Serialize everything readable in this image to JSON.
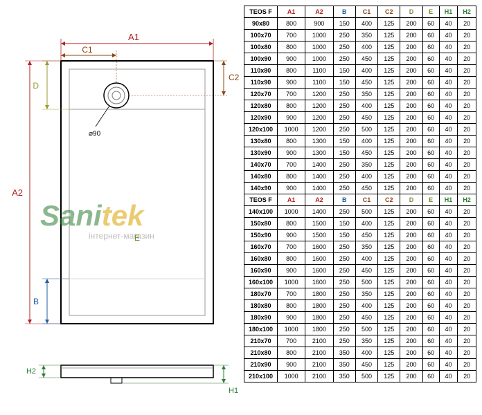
{
  "watermark": {
    "part1": "Sani",
    "part2": "tek",
    "sub": "інтернет-магазин",
    "color1": "#2e7d32",
    "color2": "#dca100"
  },
  "diagram": {
    "labels": {
      "A1": "A1",
      "A2": "A2",
      "B": "B",
      "C1": "C1",
      "C2": "C2",
      "D": "D",
      "E": "E",
      "H1": "H1",
      "H2": "H2",
      "diameter": "⌀90"
    },
    "colors": {
      "A": "#b22222",
      "B": "#1e5fa0",
      "C": "#8b4513",
      "D": "#9a9a2f",
      "E": "#6b8e23",
      "H": "#2e7d32",
      "outline": "#000000",
      "dim_gray": "#666666"
    }
  },
  "table": {
    "header_label": "TEOS F",
    "cols": [
      "A1",
      "A2",
      "B",
      "C1",
      "C2",
      "D",
      "E",
      "H1",
      "H2"
    ],
    "col_colors": {
      "A1": "#b22222",
      "A2": "#b22222",
      "B": "#1e5fa0",
      "C1": "#8b4513",
      "C2": "#8b4513",
      "D": "#888844",
      "E": "#6b8e23",
      "H1": "#2e7d32",
      "H2": "#2e7d32"
    },
    "rows1": [
      {
        "m": "90x80",
        "v": [
          800,
          900,
          150,
          400,
          125,
          200,
          60,
          40,
          20
        ]
      },
      {
        "m": "100x70",
        "v": [
          700,
          1000,
          250,
          350,
          125,
          200,
          60,
          40,
          20
        ]
      },
      {
        "m": "100x80",
        "v": [
          800,
          1000,
          250,
          400,
          125,
          200,
          60,
          40,
          20
        ]
      },
      {
        "m": "100x90",
        "v": [
          900,
          1000,
          250,
          450,
          125,
          200,
          60,
          40,
          20
        ]
      },
      {
        "m": "110x80",
        "v": [
          800,
          1100,
          150,
          400,
          125,
          200,
          60,
          40,
          20
        ]
      },
      {
        "m": "110x90",
        "v": [
          900,
          1100,
          150,
          450,
          125,
          200,
          60,
          40,
          20
        ]
      },
      {
        "m": "120x70",
        "v": [
          700,
          1200,
          250,
          350,
          125,
          200,
          60,
          40,
          20
        ]
      },
      {
        "m": "120x80",
        "v": [
          800,
          1200,
          250,
          400,
          125,
          200,
          60,
          40,
          20
        ]
      },
      {
        "m": "120x90",
        "v": [
          900,
          1200,
          250,
          450,
          125,
          200,
          60,
          40,
          20
        ]
      },
      {
        "m": "120x100",
        "v": [
          1000,
          1200,
          250,
          500,
          125,
          200,
          60,
          40,
          20
        ]
      },
      {
        "m": "130x80",
        "v": [
          800,
          1300,
          150,
          400,
          125,
          200,
          60,
          40,
          20
        ]
      },
      {
        "m": "130x90",
        "v": [
          900,
          1300,
          150,
          450,
          125,
          200,
          60,
          40,
          20
        ]
      },
      {
        "m": "140x70",
        "v": [
          700,
          1400,
          250,
          350,
          125,
          200,
          60,
          40,
          20
        ]
      },
      {
        "m": "140x80",
        "v": [
          800,
          1400,
          250,
          400,
          125,
          200,
          60,
          40,
          20
        ]
      },
      {
        "m": "140x90",
        "v": [
          900,
          1400,
          250,
          450,
          125,
          200,
          60,
          40,
          20
        ]
      }
    ],
    "rows2": [
      {
        "m": "140x100",
        "v": [
          1000,
          1400,
          250,
          500,
          125,
          200,
          60,
          40,
          20
        ]
      },
      {
        "m": "150x80",
        "v": [
          800,
          1500,
          150,
          400,
          125,
          200,
          60,
          40,
          20
        ]
      },
      {
        "m": "150x90",
        "v": [
          900,
          1500,
          150,
          450,
          125,
          200,
          60,
          40,
          20
        ]
      },
      {
        "m": "160x70",
        "v": [
          700,
          1600,
          250,
          350,
          125,
          200,
          60,
          40,
          20
        ]
      },
      {
        "m": "160x80",
        "v": [
          800,
          1600,
          250,
          400,
          125,
          200,
          60,
          40,
          20
        ]
      },
      {
        "m": "160x90",
        "v": [
          900,
          1600,
          250,
          450,
          125,
          200,
          60,
          40,
          20
        ]
      },
      {
        "m": "160x100",
        "v": [
          1000,
          1600,
          250,
          500,
          125,
          200,
          60,
          40,
          20
        ]
      },
      {
        "m": "180x70",
        "v": [
          700,
          1800,
          250,
          350,
          125,
          200,
          60,
          40,
          20
        ]
      },
      {
        "m": "180x80",
        "v": [
          800,
          1800,
          250,
          400,
          125,
          200,
          60,
          40,
          20
        ]
      },
      {
        "m": "180x90",
        "v": [
          900,
          1800,
          250,
          450,
          125,
          200,
          60,
          40,
          20
        ]
      },
      {
        "m": "180x100",
        "v": [
          1000,
          1800,
          250,
          500,
          125,
          200,
          60,
          40,
          20
        ]
      },
      {
        "m": "210x70",
        "v": [
          700,
          2100,
          250,
          350,
          125,
          200,
          60,
          40,
          20
        ]
      },
      {
        "m": "210x80",
        "v": [
          800,
          2100,
          350,
          400,
          125,
          200,
          60,
          40,
          20
        ]
      },
      {
        "m": "210x90",
        "v": [
          900,
          2100,
          350,
          450,
          125,
          200,
          60,
          40,
          20
        ]
      },
      {
        "m": "210x100",
        "v": [
          1000,
          2100,
          350,
          500,
          125,
          200,
          60,
          40,
          20
        ]
      }
    ]
  }
}
